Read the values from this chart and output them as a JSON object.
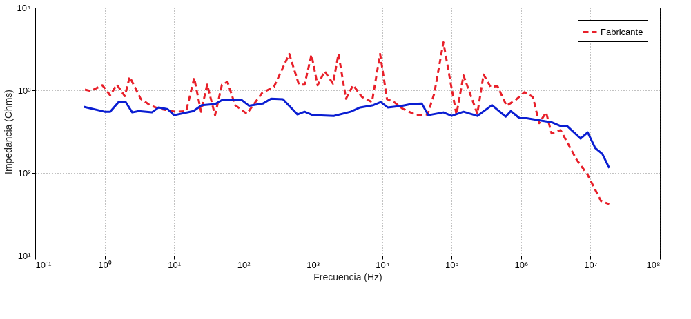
{
  "chart_data": {
    "type": "line",
    "xlabel": "Frecuencia (Hz)",
    "ylabel": "Impedancia (Ohms)",
    "log": "xy",
    "grid": true,
    "legend": "top right",
    "xlim": [
      0.1,
      100000000
    ],
    "ylim": [
      10,
      10000
    ],
    "xticks": [
      {
        "value": 0.1,
        "label": "10⁻¹"
      },
      {
        "value": 1,
        "label": "10⁰"
      },
      {
        "value": 10,
        "label": "10¹"
      },
      {
        "value": 100,
        "label": "10²"
      },
      {
        "value": 1000,
        "label": "10³"
      },
      {
        "value": 10000,
        "label": "10⁴"
      },
      {
        "value": 100000,
        "label": "10⁵"
      },
      {
        "value": 1000000,
        "label": "10⁶"
      },
      {
        "value": 10000000,
        "label": "10⁷"
      },
      {
        "value": 100000000,
        "label": "10⁸"
      }
    ],
    "yticks": [
      {
        "value": 10,
        "label": "10¹"
      },
      {
        "value": 100,
        "label": "10²"
      },
      {
        "value": 1000,
        "label": "10³"
      },
      {
        "value": 10000,
        "label": "10⁴"
      }
    ],
    "series": [
      {
        "name": "Fabricante",
        "color": "#e8202a",
        "line_style": "dashed",
        "x": [
          0.52,
          0.63,
          0.93,
          1.2,
          1.5,
          1.95,
          2.3,
          3.3,
          4.5,
          6,
          10.5,
          15,
          19.5,
          24.5,
          30,
          39,
          49,
          59,
          76,
          112,
          186,
          275,
          457,
          630,
          760,
          955,
          1170,
          1480,
          1950,
          2340,
          3000,
          3800,
          5100,
          7100,
          9300,
          11700,
          14800,
          19500,
          31000,
          45000,
          56000,
          76000,
          95000,
          117000,
          148000,
          234000,
          288000,
          363000,
          457000,
          617000,
          830000,
          1120000,
          1480000,
          1820000,
          2290000,
          2750000,
          3700000,
          6300000,
          9100000,
          14100000,
          18600000
        ],
        "values": [
          1020,
          980,
          1150,
          870,
          1170,
          850,
          1450,
          790,
          660,
          600,
          550,
          560,
          1410,
          550,
          1170,
          500,
          1170,
          1260,
          660,
          520,
          930,
          1100,
          2750,
          1170,
          1170,
          2690,
          1150,
          1700,
          1200,
          2750,
          790,
          1150,
          830,
          720,
          2750,
          780,
          720,
          600,
          500,
          510,
          910,
          3800,
          1320,
          510,
          1510,
          520,
          1550,
          1100,
          1120,
          650,
          760,
          950,
          830,
          400,
          540,
          300,
          330,
          145,
          95,
          46,
          42
        ]
      },
      {
        "color": "#0a1ed2",
        "line_style": "solid",
        "x": [
          0.5,
          1,
          1.2,
          1.6,
          2,
          2.5,
          3.1,
          4.8,
          6,
          8.1,
          10,
          19,
          25,
          39,
          49,
          95,
          120,
          190,
          250,
          370,
          600,
          760,
          1000,
          2000,
          3500,
          4800,
          7400,
          9500,
          12000,
          19500,
          26000,
          37000,
          46000,
          76000,
          100000,
          148000,
          234000,
          380000,
          600000,
          710000,
          950000,
          1200000,
          2750000,
          3700000,
          4600000,
          7200000,
          9100000,
          11700000,
          14800000,
          18600000
        ],
        "values": [
          630,
          550,
          550,
          725,
          725,
          540,
          560,
          540,
          620,
          590,
          500,
          560,
          660,
          680,
          760,
          760,
          650,
          690,
          790,
          780,
          510,
          550,
          500,
          490,
          550,
          620,
          660,
          720,
          620,
          650,
          680,
          690,
          500,
          540,
          490,
          550,
          490,
          660,
          480,
          560,
          460,
          460,
          410,
          370,
          370,
          260,
          310,
          200,
          170,
          115
        ]
      }
    ]
  }
}
